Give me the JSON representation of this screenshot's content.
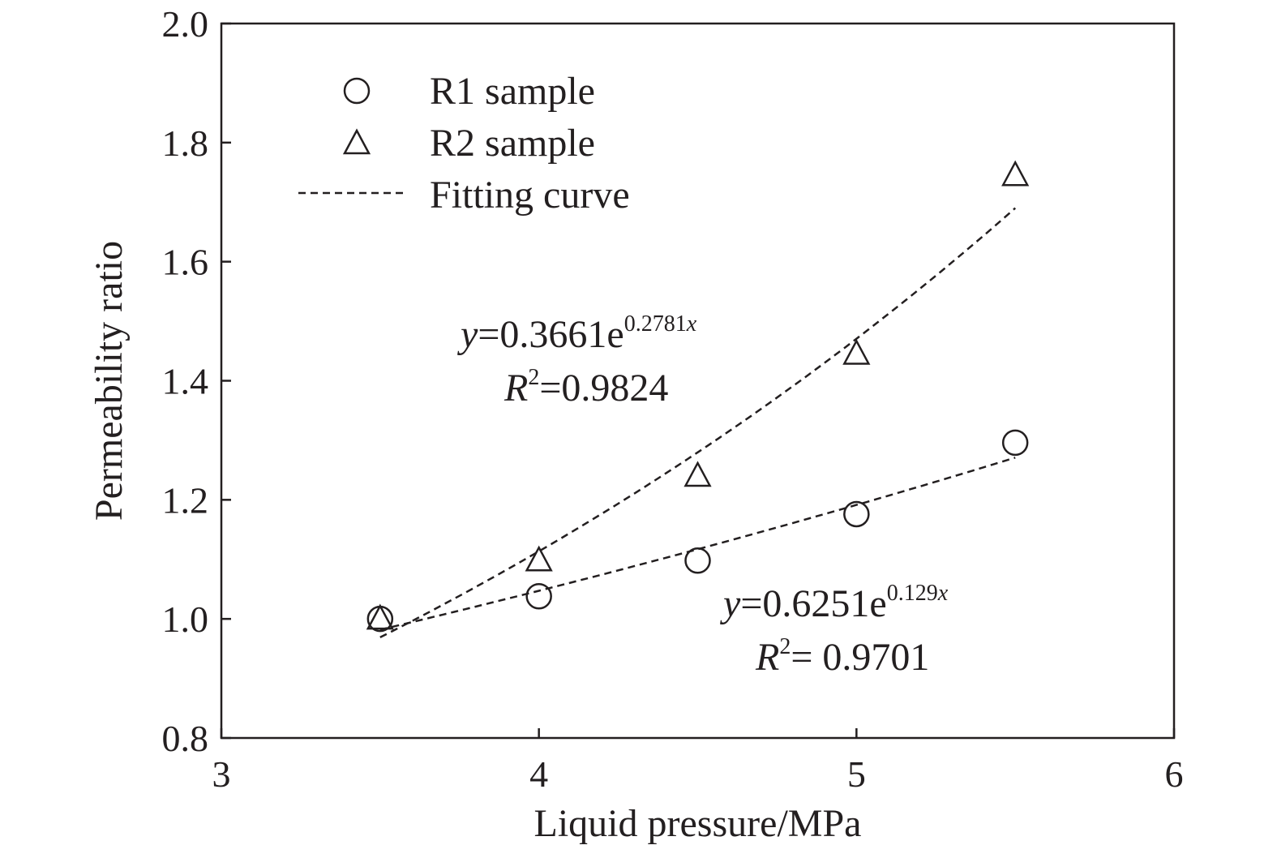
{
  "chart_data": {
    "type": "scatter",
    "title": "",
    "xlabel": "Liquid pressure/MPa",
    "ylabel": "Permeability ratio",
    "xlim": [
      3,
      6
    ],
    "ylim": [
      0.8,
      2.0
    ],
    "x_ticks": [
      3,
      4,
      5,
      6
    ],
    "x_tick_labels": [
      "3",
      "4",
      "5",
      "6"
    ],
    "y_ticks": [
      0.8,
      1.0,
      1.2,
      1.4,
      1.6,
      1.8,
      2.0
    ],
    "y_tick_labels": [
      "0.8",
      "1.0",
      "1.2",
      "1.4",
      "1.6",
      "1.8",
      "2.0"
    ],
    "grid": false,
    "legend_position": "top-left",
    "series": [
      {
        "name": "R1 sample",
        "marker": "circle",
        "x": [
          3.5,
          4.0,
          4.5,
          5.0,
          5.5
        ],
        "y": [
          1.0,
          1.038,
          1.098,
          1.176,
          1.296
        ]
      },
      {
        "name": "R2 sample",
        "marker": "triangle",
        "x": [
          3.5,
          4.0,
          4.5,
          5.0,
          5.5
        ],
        "y": [
          1.0,
          1.098,
          1.24,
          1.445,
          1.745
        ]
      }
    ],
    "fits": [
      {
        "name": "Fitting curve",
        "series": "R2 sample",
        "a": 0.3661,
        "b": 0.2781,
        "x_range": [
          3.5,
          5.5
        ],
        "equation": {
          "y_sym": "y",
          "eq_text": "=0.3661e",
          "exponent": "0.2781",
          "exp_var": "x"
        },
        "r2": {
          "r_sym": "R",
          "sup": "2",
          "text": "=0.9824"
        }
      },
      {
        "name": "Fitting curve",
        "series": "R1 sample",
        "a": 0.6251,
        "b": 0.129,
        "x_range": [
          3.5,
          5.5
        ],
        "equation": {
          "y_sym": "y",
          "eq_text": "=0.6251e",
          "exponent": "0.129",
          "exp_var": "x"
        },
        "r2": {
          "r_sym": "R",
          "sup": "2",
          "text": "= 0.9701"
        }
      }
    ],
    "legend": [
      {
        "label": "R1 sample",
        "symbol": "circle"
      },
      {
        "label": "R2 sample",
        "symbol": "triangle"
      },
      {
        "label": "Fitting curve",
        "symbol": "dashed-line"
      }
    ],
    "colors": {
      "ink": "#231f20",
      "background": "#ffffff"
    }
  }
}
